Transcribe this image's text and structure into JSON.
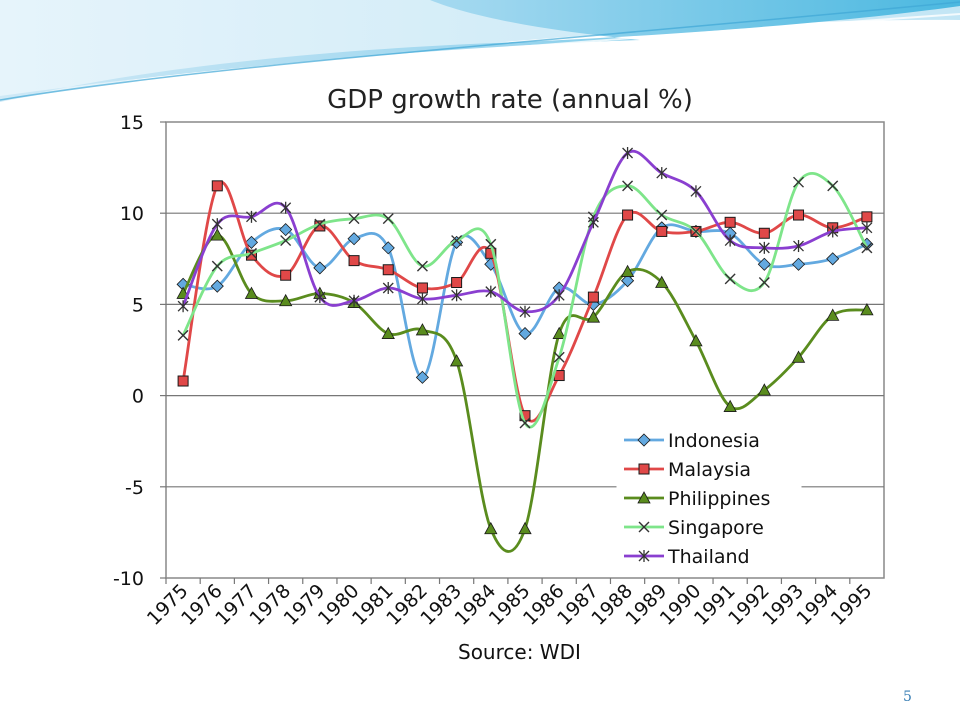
{
  "slide": {
    "page_number": "5",
    "source": "Source: WDI"
  },
  "chart_data": {
    "type": "line",
    "title": "GDP growth rate (annual %)",
    "xlabel": "",
    "ylabel": "",
    "ylim": [
      -10,
      15
    ],
    "yticks": [
      15,
      10,
      5,
      0,
      -5,
      -10
    ],
    "grid": "horizontal",
    "legend_position": "bottom-right",
    "categories": [
      "1975",
      "1976",
      "1977",
      "1978",
      "1979",
      "1980",
      "1981",
      "1982",
      "1983",
      "1984",
      "1985",
      "1986",
      "1987",
      "1988",
      "1989",
      "1990",
      "1991",
      "1992",
      "1993",
      "1994",
      "1995"
    ],
    "series": [
      {
        "name": "Indonesia",
        "marker": "diamond",
        "color": "#63a9e0",
        "values": [
          6.1,
          6.0,
          8.4,
          9.1,
          7.0,
          8.6,
          8.1,
          1.0,
          8.4,
          7.2,
          3.4,
          5.9,
          5.0,
          6.3,
          9.2,
          9.0,
          8.9,
          7.2,
          7.2,
          7.5,
          8.3
        ]
      },
      {
        "name": "Malaysia",
        "marker": "square",
        "color": "#e04848",
        "values": [
          0.8,
          11.5,
          7.7,
          6.6,
          9.3,
          7.4,
          6.9,
          5.9,
          6.2,
          7.8,
          -1.1,
          1.1,
          5.4,
          9.9,
          9.0,
          9.0,
          9.5,
          8.9,
          9.9,
          9.2,
          9.8
        ]
      },
      {
        "name": "Philippines",
        "marker": "triangle",
        "color": "#5a8c1e",
        "values": [
          5.6,
          8.8,
          5.6,
          5.2,
          5.6,
          5.1,
          3.4,
          3.6,
          1.9,
          -7.3,
          -7.3,
          3.4,
          4.3,
          6.8,
          6.2,
          3.0,
          -0.6,
          0.3,
          2.1,
          4.4,
          4.7
        ]
      },
      {
        "name": "Singapore",
        "marker": "x",
        "color": "#7ee58a",
        "values": [
          3.3,
          7.1,
          7.8,
          8.5,
          9.4,
          9.7,
          9.7,
          7.1,
          8.5,
          8.3,
          -1.5,
          2.1,
          9.8,
          11.5,
          9.9,
          9.0,
          6.4,
          6.2,
          11.7,
          11.5,
          8.1
        ]
      },
      {
        "name": "Thailand",
        "marker": "star",
        "color": "#8a3fd0",
        "values": [
          4.9,
          9.4,
          9.8,
          10.3,
          5.4,
          5.2,
          5.9,
          5.3,
          5.5,
          5.7,
          4.6,
          5.5,
          9.5,
          13.3,
          12.2,
          11.2,
          8.5,
          8.1,
          8.2,
          9.0,
          9.2
        ]
      }
    ]
  }
}
